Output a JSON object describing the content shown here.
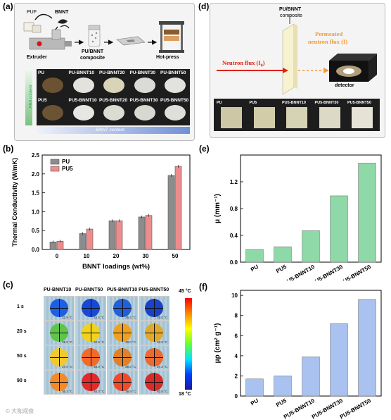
{
  "panels": {
    "a": "(a)",
    "b": "(b)",
    "c": "(c)",
    "d": "(d)",
    "e": "(e)",
    "f": "(f)"
  },
  "panel_a": {
    "puf": "PUF",
    "bnnt": "BNNT",
    "extruder": "Extruder",
    "composite_line1": "PU/BNNT",
    "composite_line2": "composite",
    "hotpress": "Hot-press",
    "row1": [
      "PU",
      "PU-BNNT10",
      "PU-BNNT20",
      "PU-BNNT30",
      "PU-BNNT50"
    ],
    "row2": [
      "PU5",
      "PU5-BNNT10",
      "PU5-BNNT20",
      "PU5-BNNT30",
      "PU5-BNNT50"
    ],
    "pba_axis": "PBA content",
    "bnnt_axis": "BNNT content"
  },
  "panel_d": {
    "sample_line1": "PU/BNNT",
    "sample_line2": "composite",
    "incident": "Neutron flux (I",
    "incident_sub": "0",
    "permeated_line1": "Permeated",
    "permeated_line2": "neutron flux (I)",
    "detector": "detector",
    "squares": [
      "PU",
      "PU5",
      "PU5-BNNT10",
      "PU5-BNNT30",
      "PU5-BNNT50"
    ]
  },
  "panel_c": {
    "cols": [
      "PU-BNNT10",
      "PU-BNNT50",
      "PU5-BNNT10",
      "PU5-BNNT50"
    ],
    "times": [
      "1 s",
      "20 s",
      "50 s",
      "90 s"
    ],
    "readings": [
      [
        "22.9 °C",
        "22.4 °C",
        "25.4 °C",
        "25.0 °C"
      ],
      [
        "29.9 °C",
        "32.6 °C",
        "30.0 °C",
        "33.9 °C"
      ],
      [
        "37.0 °C",
        "38.0 °C",
        "36.6 °C",
        "37.3 °C"
      ],
      [
        "36.3 °C",
        "40.0 °C",
        "38.9 °C",
        "40.8 °C"
      ]
    ],
    "scale_max": "45 °C",
    "scale_min": "18 °C"
  },
  "watermark": "© 大咖观察",
  "chart_data": [
    {
      "id": "b",
      "type": "bar",
      "categories": [
        "0",
        "10",
        "20",
        "30",
        "50"
      ],
      "series": [
        {
          "name": "PU",
          "color": "#8c8c8c",
          "values": [
            0.2,
            0.42,
            0.76,
            0.86,
            1.96
          ]
        },
        {
          "name": "PU5",
          "color": "#ee8c8c",
          "values": [
            0.22,
            0.54,
            0.76,
            0.9,
            2.2
          ]
        }
      ],
      "xlabel": "BNNT loadings (wt%)",
      "ylabel": "Thermal Conductivity (W/mK)",
      "ylim": [
        0,
        2.5
      ],
      "yticks": [
        "0.0",
        "0.5",
        "1.0",
        "1.5",
        "2.0",
        "2.5"
      ],
      "legend": "top-left"
    },
    {
      "id": "e",
      "type": "bar",
      "categories": [
        "PU",
        "PU5",
        "PU5-BNNT10",
        "PU5-BNNT30",
        "PU5-BNNT50"
      ],
      "values": [
        0.19,
        0.23,
        0.47,
        0.99,
        1.48
      ],
      "color": "#8fd9a8",
      "ylabel": "μ (mm⁻¹)",
      "ylim": [
        0,
        1.6
      ],
      "yticks": [
        "0.0",
        "0.4",
        "0.8",
        "1.2"
      ]
    },
    {
      "id": "f",
      "type": "bar",
      "categories": [
        "PU",
        "PU5",
        "PU5-BNNT10",
        "PU5-BNNT30",
        "PU5-BNNT50"
      ],
      "values": [
        1.7,
        2.0,
        3.9,
        7.2,
        9.6
      ],
      "color": "#a9c2ef",
      "ylabel": "μρ (cm² g⁻¹)",
      "ylim": [
        0,
        10.5
      ],
      "yticks": [
        "0",
        "2",
        "4",
        "6",
        "8",
        "10"
      ]
    }
  ]
}
